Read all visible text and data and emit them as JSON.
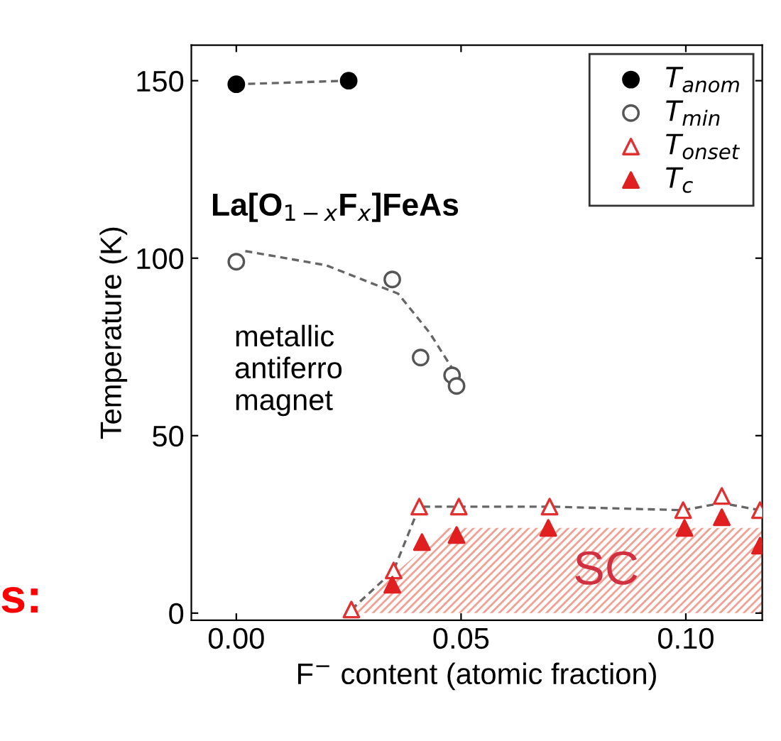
{
  "chart_data": {
    "type": "scatter",
    "xlabel": "F$^{−}$ content (atomic fraction)",
    "ylabel": "Temperature (K)",
    "xlim": [
      -0.01,
      0.117
    ],
    "ylim": [
      -2,
      160
    ],
    "xticks": [
      {
        "value": 0,
        "label": "0.00"
      },
      {
        "value": 0.05,
        "label": "0.05"
      },
      {
        "value": 0.1,
        "label": "0.10"
      }
    ],
    "yticks": [
      0,
      50,
      100,
      150
    ],
    "grid": false,
    "legend": "top right",
    "series": [
      {
        "type": "area",
        "color": "#e8604c",
        "x": [
          0.025,
          0.047,
          0.117
        ],
        "values": [
          0,
          24,
          24
        ]
      },
      {
        "type": "line",
        "color": "#666666",
        "line_style": "dashed",
        "marker": "none",
        "x": [
          0,
          0.025
        ],
        "values": [
          149,
          150
        ]
      },
      {
        "type": "line",
        "color": "#666666",
        "line_style": "dashed",
        "marker": "none",
        "x": [
          0.002,
          0.02,
          0.036,
          0.043,
          0.049
        ],
        "values": [
          102,
          98,
          90,
          79,
          67
        ]
      },
      {
        "type": "line",
        "color": "#666666",
        "line_style": "dashed",
        "marker": "none",
        "x": [
          0.0256,
          0.035,
          0.0407,
          0.0495,
          0.0697,
          0.0994,
          0.108,
          0.1165
        ],
        "values": [
          1,
          12,
          30,
          30,
          30,
          29,
          31,
          29
        ]
      },
      {
        "name": "T$_{anom}$",
        "color": "#000000",
        "marker": "circle",
        "x": [
          0,
          0.025
        ],
        "values": [
          149,
          150
        ]
      },
      {
        "name": "T$_{min}$",
        "color": "#555555",
        "marker": "circle-open",
        "x": [
          0,
          0.0347,
          0.041,
          0.048,
          0.049
        ],
        "values": [
          99,
          94,
          72,
          67,
          64
        ]
      },
      {
        "name": "T$_{onset}$",
        "color": "#e03030",
        "marker": "triangle-open",
        "x": [
          0.0256,
          0.035,
          0.0407,
          0.0495,
          0.0697,
          0.0994,
          0.108,
          0.1165
        ],
        "values": [
          1,
          12,
          30,
          30,
          30,
          29,
          33,
          29
        ]
      },
      {
        "name": "T$_{c}$",
        "color": "#e02020",
        "marker": "triangle",
        "x": [
          0.0347,
          0.0413,
          0.049,
          0.0694,
          0.0997,
          0.108,
          0.1165
        ],
        "values": [
          8,
          20,
          22,
          24,
          24,
          27,
          19
        ]
      }
    ],
    "annotations": [
      "La[O$_{1−x}$F$_{x}$]FeAs",
      "metallic\nantiferro\nmagnet",
      "SC",
      "s:"
    ]
  }
}
